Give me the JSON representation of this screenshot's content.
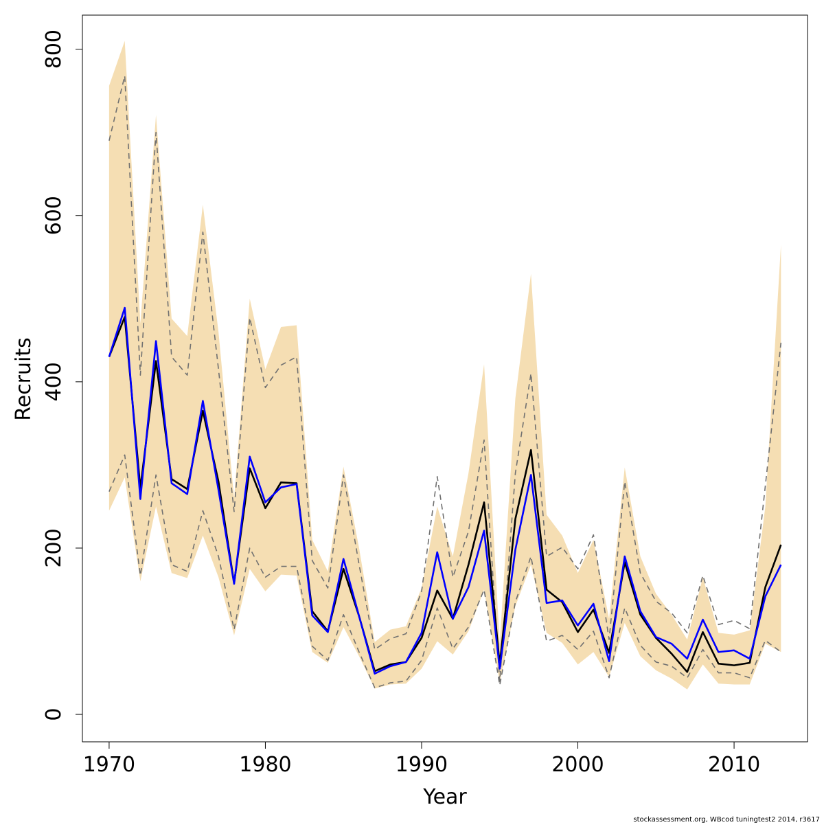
{
  "chart_data": {
    "type": "line",
    "x_label": "Year",
    "y_label": "Recruits",
    "footnote": "stockassessment.org, WBcod tuningtest2 2014, r3617",
    "x": [
      1970,
      1971,
      1972,
      1973,
      1974,
      1975,
      1976,
      1977,
      1978,
      1979,
      1980,
      1981,
      1982,
      1983,
      1984,
      1985,
      1986,
      1987,
      1988,
      1989,
      1990,
      1991,
      1992,
      1993,
      1994,
      1995,
      1996,
      1997,
      1998,
      1999,
      2000,
      2001,
      2002,
      2003,
      2004,
      2005,
      2006,
      2007,
      2008,
      2009,
      2010,
      2011,
      2012,
      2013
    ],
    "band": {
      "color": "#f5deb3",
      "upper": [
        756,
        810,
        470,
        721,
        476,
        455,
        613,
        460,
        260,
        500,
        415,
        466,
        468,
        210,
        172,
        298,
        200,
        87,
        102,
        106,
        152,
        250,
        190,
        290,
        421,
        85,
        380,
        530,
        240,
        215,
        170,
        210,
        115,
        297,
        190,
        145,
        120,
        90,
        165,
        98,
        96,
        101,
        250,
        565
      ],
      "lower": [
        245,
        285,
        160,
        250,
        170,
        164,
        215,
        165,
        95,
        175,
        148,
        168,
        167,
        75,
        62,
        105,
        70,
        31,
        36,
        37,
        55,
        88,
        72,
        100,
        150,
        38,
        130,
        180,
        98,
        86,
        60,
        75,
        45,
        110,
        70,
        53,
        43,
        30,
        60,
        37,
        36,
        36,
        85,
        75
      ]
    },
    "series": [
      {
        "color": "#707070",
        "dashed": true,
        "values": [
          690,
          768,
          408,
          700,
          430,
          408,
          580,
          415,
          244,
          477,
          393,
          420,
          430,
          185,
          152,
          288,
          180,
          78,
          91,
          97,
          148,
          286,
          165,
          220,
          330,
          40,
          290,
          410,
          190,
          201,
          175,
          216,
          90,
          280,
          170,
          136,
          122,
          98,
          167,
          108,
          113,
          103,
          275,
          447
        ]
      },
      {
        "color": "#707070",
        "dashed": true,
        "values": [
          268,
          312,
          167,
          288,
          180,
          172,
          245,
          190,
          102,
          200,
          165,
          178,
          178,
          82,
          65,
          120,
          75,
          32,
          38,
          40,
          65,
          128,
          79,
          105,
          150,
          35,
          135,
          190,
          88,
          95,
          78,
          100,
          44,
          128,
          83,
          63,
          58,
          44,
          78,
          50,
          50,
          44,
          89,
          75
        ]
      },
      {
        "color": "#000000",
        "dashed": false,
        "values": [
          430,
          478,
          272,
          425,
          283,
          271,
          365,
          280,
          158,
          296,
          248,
          279,
          278,
          124,
          100,
          175,
          118,
          52,
          60,
          63,
          92,
          149,
          115,
          180,
          255,
          60,
          235,
          318,
          150,
          135,
          99,
          126,
          74,
          183,
          120,
          92,
          73,
          51,
          99,
          61,
          59,
          62,
          153,
          204
        ]
      },
      {
        "color": "#0000ff",
        "dashed": false,
        "values": [
          430,
          489,
          259,
          449,
          278,
          265,
          377,
          270,
          157,
          310,
          255,
          273,
          277,
          119,
          99,
          187,
          118,
          49,
          58,
          63,
          98,
          195,
          115,
          153,
          221,
          55,
          198,
          288,
          134,
          137,
          107,
          133,
          64,
          190,
          124,
          93,
          85,
          67,
          114,
          75,
          77,
          67,
          142,
          180
        ]
      }
    ],
    "xlim": [
      1968.29,
      2014.7
    ],
    "ylim": [
      -33,
      841
    ],
    "xticks": [
      1970,
      1980,
      1990,
      2000,
      2010
    ],
    "yticks": [
      0,
      200,
      400,
      600,
      800
    ]
  }
}
